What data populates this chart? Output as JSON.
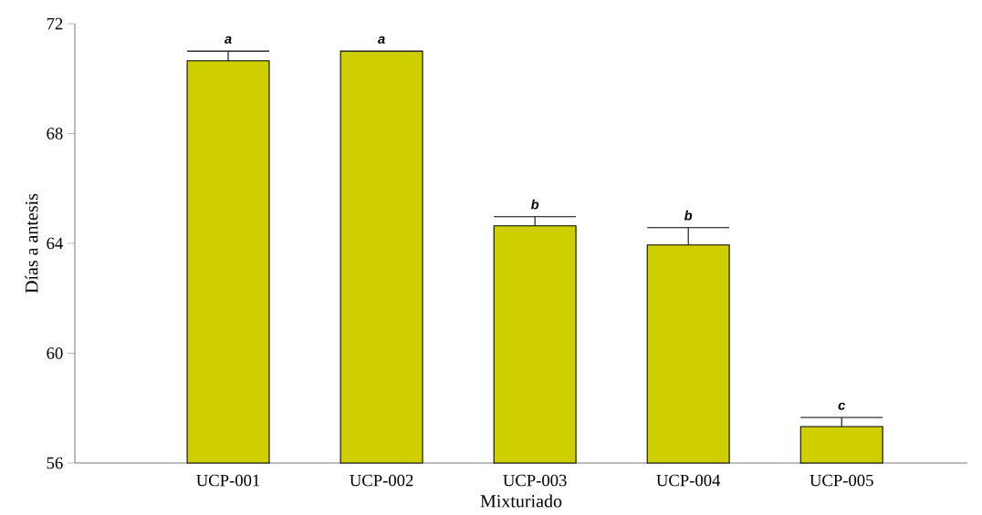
{
  "chart_data": {
    "type": "bar",
    "xlabel": "Mixturiado",
    "ylabel": "Días a antesis",
    "categories": [
      "UCP-001",
      "UCP-002",
      "UCP-003",
      "UCP-004",
      "UCP-005"
    ],
    "values": [
      70.65,
      71.0,
      64.64,
      63.94,
      57.33
    ],
    "errors": [
      [
        70.65,
        71.0
      ],
      null,
      [
        64.64,
        64.97
      ],
      [
        63.94,
        64.57
      ],
      [
        57.33,
        57.66
      ]
    ],
    "color": "#cfcf00",
    "ylim": [
      56,
      72
    ],
    "yticks": [
      56,
      60,
      64,
      68,
      72
    ],
    "grid": false,
    "annotations": [
      "a",
      "a",
      "b",
      "b",
      "c"
    ]
  }
}
